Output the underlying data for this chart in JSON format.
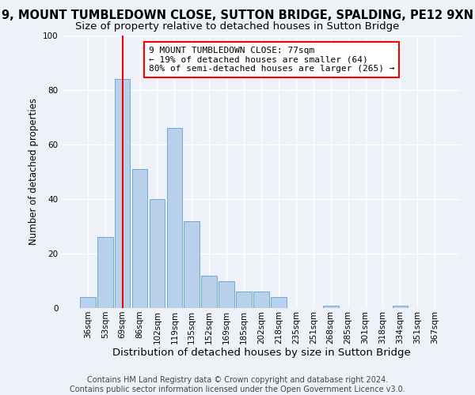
{
  "title": "9, MOUNT TUMBLEDOWN CLOSE, SUTTON BRIDGE, SPALDING, PE12 9XN",
  "subtitle": "Size of property relative to detached houses in Sutton Bridge",
  "xlabel": "Distribution of detached houses by size in Sutton Bridge",
  "ylabel": "Number of detached properties",
  "footer_line1": "Contains HM Land Registry data © Crown copyright and database right 2024.",
  "footer_line2": "Contains public sector information licensed under the Open Government Licence v3.0.",
  "bin_labels": [
    "36sqm",
    "53sqm",
    "69sqm",
    "86sqm",
    "102sqm",
    "119sqm",
    "135sqm",
    "152sqm",
    "169sqm",
    "185sqm",
    "202sqm",
    "218sqm",
    "235sqm",
    "251sqm",
    "268sqm",
    "285sqm",
    "301sqm",
    "318sqm",
    "334sqm",
    "351sqm",
    "367sqm"
  ],
  "bar_values": [
    4,
    26,
    84,
    51,
    40,
    66,
    32,
    12,
    10,
    6,
    6,
    4,
    0,
    0,
    1,
    0,
    0,
    0,
    1,
    0,
    0
  ],
  "bar_color": "#b8d0ea",
  "bar_edge_color": "#6aaad4",
  "vline_x_index": 2,
  "vline_color": "red",
  "annotation_box_text": "9 MOUNT TUMBLEDOWN CLOSE: 77sqm\n← 19% of detached houses are smaller (64)\n80% of semi-detached houses are larger (265) →",
  "annotation_box_color": "red",
  "ylim": [
    0,
    100
  ],
  "yticks": [
    0,
    20,
    40,
    60,
    80,
    100
  ],
  "background_color": "#eef2f8",
  "plot_background": "#eef2f8",
  "grid_color": "#ffffff",
  "title_fontsize": 10.5,
  "subtitle_fontsize": 9.5,
  "xlabel_fontsize": 9.5,
  "ylabel_fontsize": 8.5,
  "tick_fontsize": 7.5,
  "footer_fontsize": 7.0,
  "ann_fontsize": 8.0
}
